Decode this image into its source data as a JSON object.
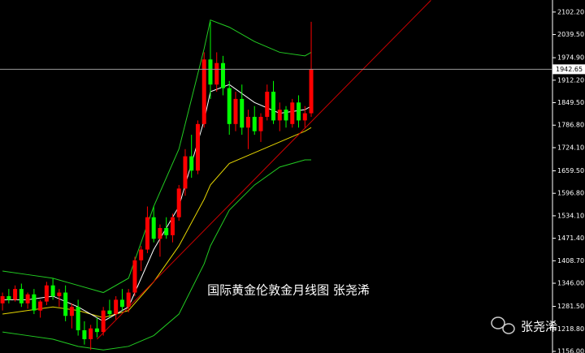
{
  "chart_data": {
    "type": "candlestick",
    "title": "国际黄金伦敦金月线图  张尧浠",
    "watermark": "张尧浠",
    "up_color": "#ff0000",
    "down_color": "#00ff00",
    "xlim": [
      -0.4,
      87.3
    ],
    "ylim": [
      1151.5,
      2135.8
    ],
    "yticks": [
      {
        "value": 2102.2,
        "label": "2102.20"
      },
      {
        "value": 2039.5,
        "label": "2039.50"
      },
      {
        "value": 1974.9,
        "label": "1974.90"
      },
      {
        "value": 1912.2,
        "label": "1912.20"
      },
      {
        "value": 1849.5,
        "label": "1849.50"
      },
      {
        "value": 1786.8,
        "label": "1786.80"
      },
      {
        "value": 1724.1,
        "label": "1724.10"
      },
      {
        "value": 1659.5,
        "label": "1659.50"
      },
      {
        "value": 1596.8,
        "label": "1596.80"
      },
      {
        "value": 1534.1,
        "label": "1534.10"
      },
      {
        "value": 1471.4,
        "label": "1471.40"
      },
      {
        "value": 1408.7,
        "label": "1408.70"
      },
      {
        "value": 1346,
        "label": "1346.00"
      },
      {
        "value": 1281.5,
        "label": "1281.50"
      },
      {
        "value": 1218.8,
        "label": "1218.80"
      },
      {
        "value": 1156,
        "label": "1156.00"
      }
    ],
    "last_price": 1942.65,
    "open": [
      1290,
      1310,
      1300,
      1330,
      1290,
      1315,
      1270,
      1295,
      1340,
      1310,
      1320,
      1255,
      1280,
      1215,
      1190,
      1220,
      1210,
      1270,
      1260,
      1300,
      1280,
      1320,
      1410,
      1440,
      1530,
      1470,
      1500,
      1480,
      1530,
      1610,
      1700,
      1660,
      1790,
      1970,
      1900,
      1960,
      1890,
      1790,
      1860,
      1780,
      1810,
      1770,
      1810,
      1880,
      1800,
      1830,
      1790,
      1850,
      1800,
      1820
    ],
    "high": [
      1320,
      1330,
      1340,
      1345,
      1320,
      1330,
      1300,
      1350,
      1360,
      1330,
      1340,
      1290,
      1300,
      1240,
      1230,
      1250,
      1280,
      1300,
      1310,
      1330,
      1330,
      1420,
      1450,
      1560,
      1560,
      1510,
      1530,
      1540,
      1620,
      1720,
      1760,
      1800,
      1990,
      2075,
      1990,
      1980,
      1910,
      1880,
      1900,
      1830,
      1840,
      1820,
      1900,
      1910,
      1850,
      1840,
      1860,
      1870,
      1840,
      2075
    ],
    "low": [
      1270,
      1290,
      1295,
      1280,
      1275,
      1260,
      1250,
      1285,
      1300,
      1280,
      1240,
      1220,
      1200,
      1175,
      1160,
      1195,
      1200,
      1250,
      1245,
      1270,
      1265,
      1310,
      1380,
      1430,
      1460,
      1420,
      1470,
      1460,
      1520,
      1590,
      1640,
      1650,
      1780,
      1860,
      1880,
      1870,
      1760,
      1770,
      1760,
      1720,
      1760,
      1740,
      1800,
      1790,
      1770,
      1780,
      1780,
      1780,
      1780,
      1810
    ],
    "close": [
      1310,
      1300,
      1330,
      1290,
      1315,
      1270,
      1295,
      1340,
      1310,
      1320,
      1255,
      1280,
      1215,
      1190,
      1220,
      1210,
      1270,
      1260,
      1300,
      1280,
      1320,
      1410,
      1440,
      1530,
      1470,
      1500,
      1480,
      1530,
      1610,
      1700,
      1660,
      1790,
      1970,
      1900,
      1960,
      1890,
      1790,
      1860,
      1780,
      1810,
      1770,
      1810,
      1880,
      1800,
      1830,
      1800,
      1850,
      1800,
      1820,
      1942.65
    ],
    "series": [
      {
        "name": "upper band",
        "color": "#22cc22",
        "x": [
          0,
          4,
          8,
          12,
          16,
          20,
          24,
          28,
          32,
          33,
          36,
          40,
          44,
          48,
          49
        ],
        "values": [
          1380,
          1370,
          1360,
          1340,
          1320,
          1360,
          1560,
          1720,
          2000,
          2080,
          2060,
          2020,
          1990,
          1980,
          1990
        ]
      },
      {
        "name": "lower band",
        "color": "#22cc22",
        "x": [
          0,
          4,
          8,
          12,
          16,
          20,
          24,
          28,
          32,
          33,
          36,
          40,
          44,
          48,
          49
        ],
        "values": [
          1210,
          1200,
          1190,
          1170,
          1160,
          1170,
          1200,
          1260,
          1400,
          1450,
          1550,
          1620,
          1670,
          1690,
          1690
        ]
      },
      {
        "name": "slow average",
        "color": "#e6d600",
        "x": [
          0,
          4,
          8,
          12,
          16,
          20,
          24,
          28,
          32,
          33,
          36,
          40,
          44,
          48,
          49
        ],
        "values": [
          1260,
          1270,
          1280,
          1270,
          1250,
          1270,
          1350,
          1450,
          1580,
          1620,
          1680,
          1710,
          1740,
          1770,
          1780
        ]
      },
      {
        "name": "fast average",
        "color": "#ffffff",
        "x": [
          0,
          4,
          8,
          12,
          16,
          20,
          24,
          28,
          32,
          33,
          36,
          40,
          44,
          48,
          49
        ],
        "values": [
          1300,
          1300,
          1310,
          1280,
          1240,
          1280,
          1440,
          1560,
          1800,
          1880,
          1900,
          1850,
          1820,
          1830,
          1840
        ]
      }
    ],
    "trendline": {
      "color": "#cc0000",
      "x": [
        15,
        68
      ],
      "values": [
        1190,
        2135
      ]
    }
  }
}
